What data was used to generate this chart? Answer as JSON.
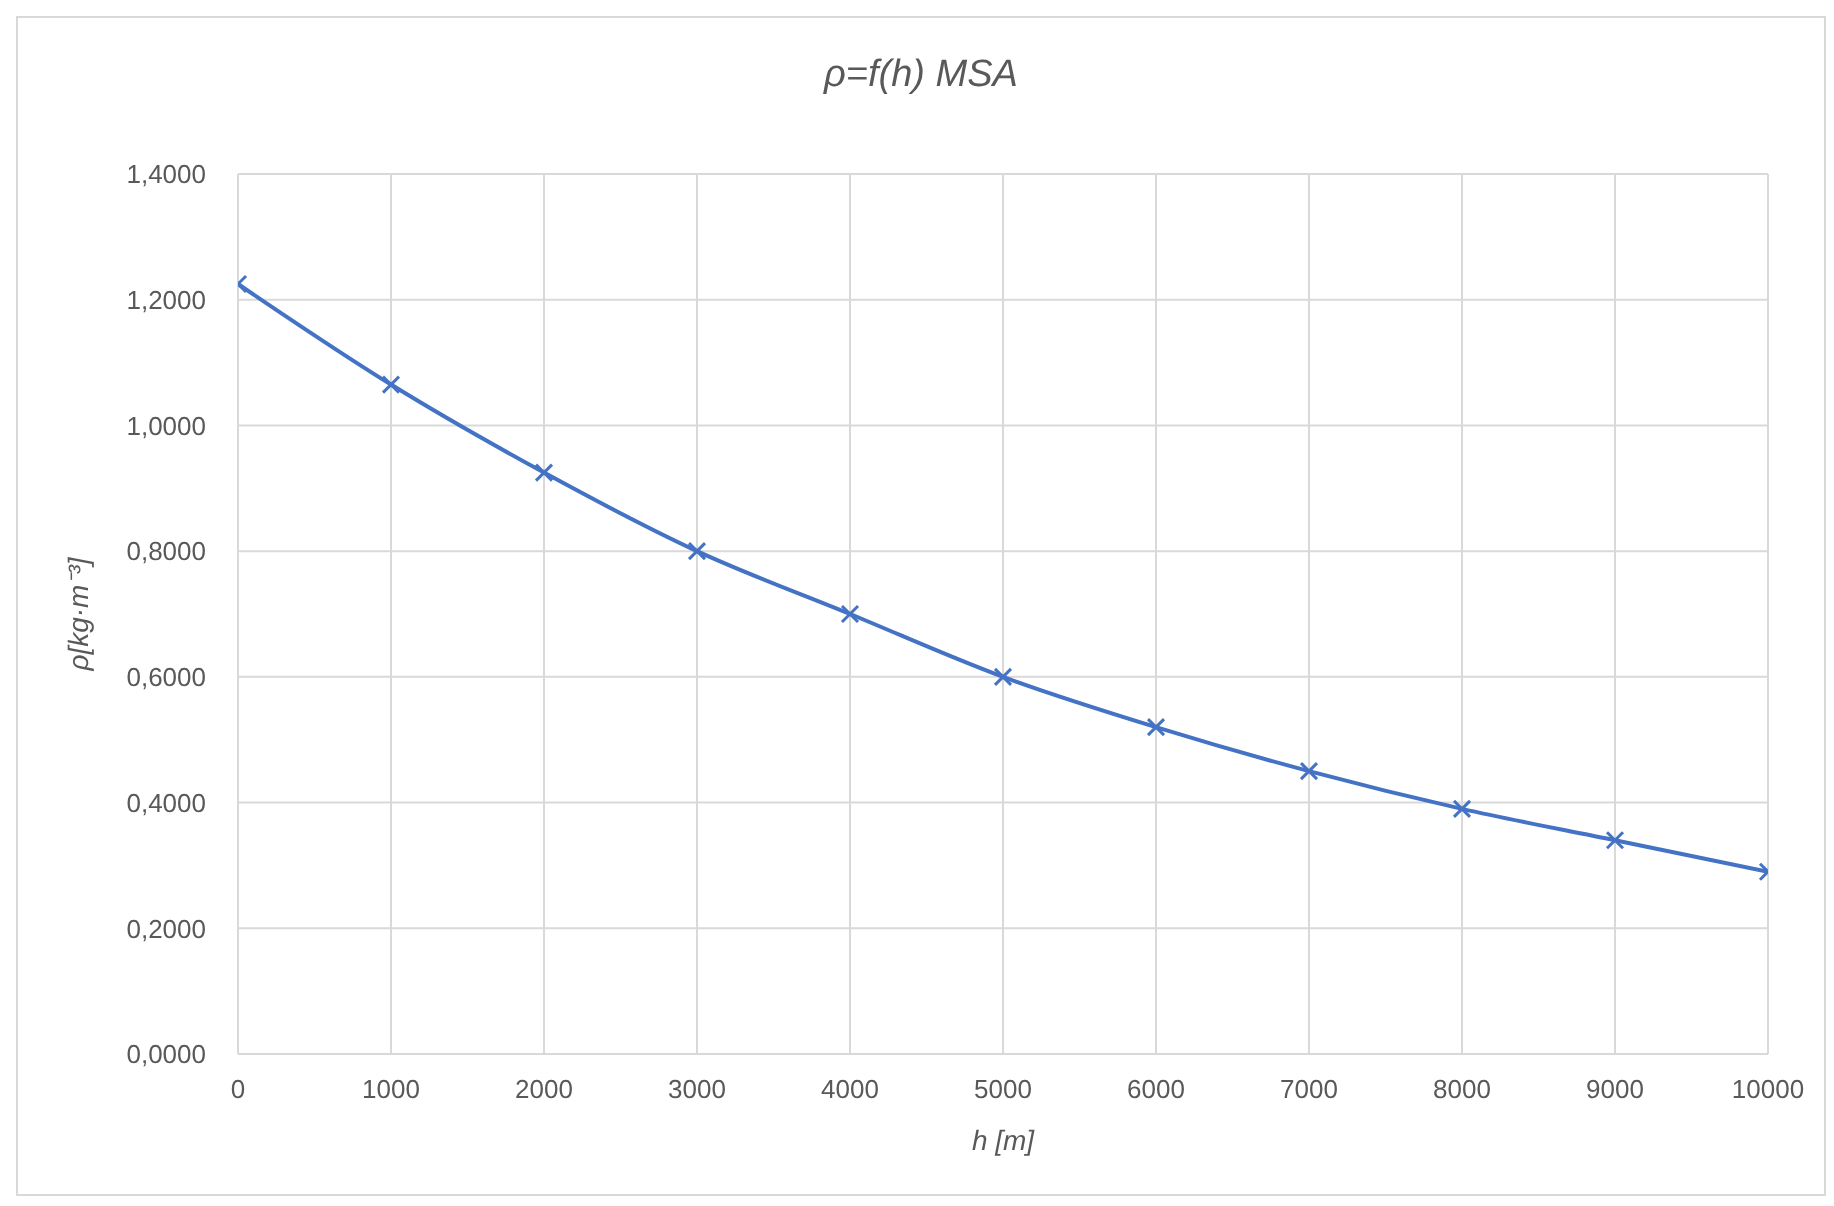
{
  "chart_data": {
    "type": "line",
    "title": "ρ=f(h) MSA",
    "xlabel": "h [m]",
    "ylabel": "ρ[kg·m⁻³]",
    "x": [
      0,
      1000,
      2000,
      3000,
      4000,
      5000,
      6000,
      7000,
      8000,
      9000,
      10000
    ],
    "series": [
      {
        "color": "#4472c4",
        "values": [
          1.225,
          1.065,
          0.925,
          0.8,
          0.7,
          0.6,
          0.52,
          0.45,
          0.39,
          0.34,
          0.29
        ]
      }
    ],
    "xlim": [
      0,
      10000
    ],
    "xticks": [
      0,
      1000,
      2000,
      3000,
      4000,
      5000,
      6000,
      7000,
      8000,
      9000,
      10000
    ],
    "ylim": [
      0,
      1.4
    ],
    "yticks": [
      {
        "value": 0,
        "label": "0,0000"
      },
      {
        "value": 0.2,
        "label": "0,2000"
      },
      {
        "value": 0.4,
        "label": "0,4000"
      },
      {
        "value": 0.6,
        "label": "0,6000"
      },
      {
        "value": 0.8,
        "label": "0,8000"
      },
      {
        "value": 1,
        "label": "1,0000"
      },
      {
        "value": 1.2,
        "label": "1,2000"
      },
      {
        "value": 1.4,
        "label": "1,4000"
      }
    ],
    "grid": true,
    "marker": "cross",
    "line_style": "solid"
  }
}
